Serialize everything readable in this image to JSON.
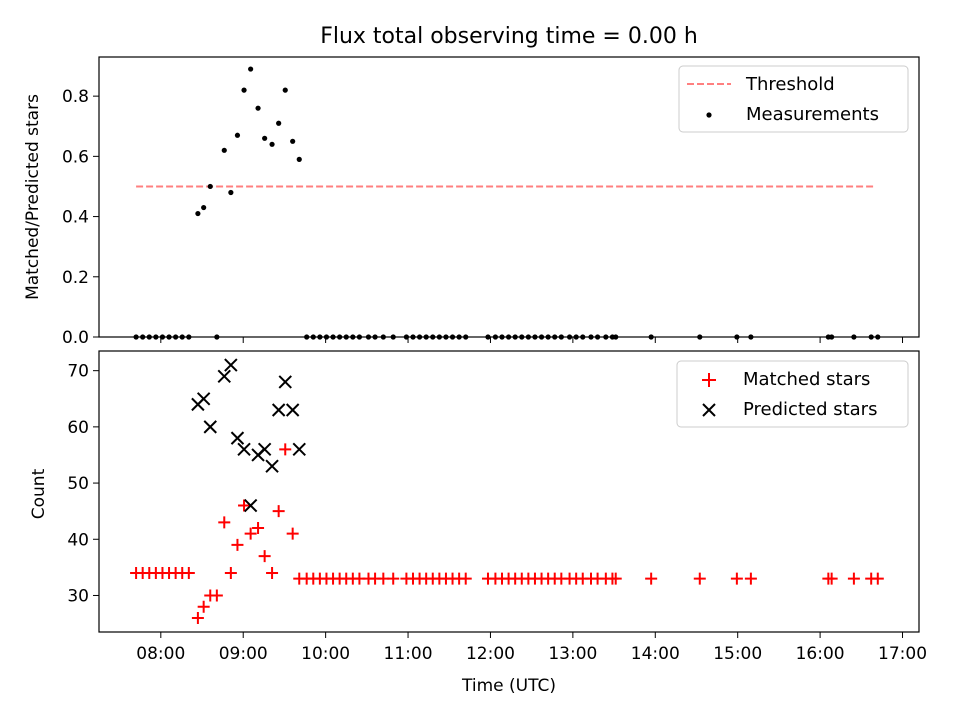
{
  "chart_data": [
    {
      "type": "scatter",
      "title": "Flux total observing time = 0.00 h",
      "xlabel": "",
      "ylabel": "Matched/Predicted stars",
      "xlim": [
        7.25,
        17.2
      ],
      "ylim": [
        0,
        0.93
      ],
      "yticks": [
        0.0,
        0.2,
        0.4,
        0.6,
        0.8
      ],
      "ytick_labels": [
        "0.0",
        "0.2",
        "0.4",
        "0.6",
        "0.8"
      ],
      "legend_position": "top-right",
      "series": [
        {
          "name": "Threshold",
          "kind": "dashed-line",
          "color": "#ff7f7f",
          "x": [
            7.7,
            16.65
          ],
          "y": [
            0.5,
            0.5
          ]
        },
        {
          "name": "Measurements",
          "kind": "dots",
          "color": "#000000",
          "x": [
            7.7,
            7.78,
            7.86,
            7.94,
            8.02,
            8.1,
            8.18,
            8.26,
            8.34,
            8.45,
            8.52,
            8.6,
            8.68,
            8.77,
            8.85,
            8.93,
            9.01,
            9.09,
            9.18,
            9.26,
            9.35,
            9.43,
            9.51,
            9.6,
            9.68,
            9.77,
            9.85,
            9.93,
            10.01,
            10.09,
            10.17,
            10.25,
            10.33,
            10.41,
            10.52,
            10.6,
            10.7,
            10.82,
            10.98,
            11.06,
            11.14,
            11.22,
            11.3,
            11.38,
            11.46,
            11.54,
            11.62,
            11.7,
            11.97,
            12.06,
            12.14,
            12.22,
            12.3,
            12.38,
            12.46,
            12.54,
            12.62,
            12.7,
            12.78,
            12.86,
            12.96,
            13.04,
            13.12,
            13.22,
            13.3,
            13.4,
            13.48,
            13.52,
            13.95,
            14.54,
            14.99,
            15.16,
            16.1,
            16.14,
            16.41,
            16.62,
            16.7
          ],
          "y": [
            0,
            0,
            0,
            0,
            0,
            0,
            0,
            0,
            0,
            0.41,
            0.43,
            0.5,
            0,
            0.62,
            0.48,
            0.67,
            0.82,
            0.89,
            0.76,
            0.66,
            0.64,
            0.71,
            0.82,
            0.65,
            0.59,
            0,
            0,
            0,
            0,
            0,
            0,
            0,
            0,
            0,
            0,
            0,
            0,
            0,
            0,
            0,
            0,
            0,
            0,
            0,
            0,
            0,
            0,
            0,
            0,
            0,
            0,
            0,
            0,
            0,
            0,
            0,
            0,
            0,
            0,
            0,
            0,
            0,
            0,
            0,
            0,
            0,
            0,
            0,
            0,
            0,
            0,
            0,
            0,
            0,
            0,
            0,
            0
          ]
        }
      ]
    },
    {
      "type": "scatter",
      "title": "",
      "xlabel": "Time (UTC)",
      "ylabel": "Count",
      "xlim": [
        7.25,
        17.2
      ],
      "ylim": [
        23.5,
        73.5
      ],
      "yticks": [
        30,
        40,
        50,
        60,
        70
      ],
      "ytick_labels": [
        "30",
        "40",
        "50",
        "60",
        "70"
      ],
      "xticks": [
        8,
        9,
        10,
        11,
        12,
        13,
        14,
        15,
        16,
        17
      ],
      "xtick_labels": [
        "08:00",
        "09:00",
        "10:00",
        "11:00",
        "12:00",
        "13:00",
        "14:00",
        "15:00",
        "16:00",
        "17:00"
      ],
      "legend_position": "top-right",
      "series": [
        {
          "name": "Matched stars",
          "marker": "plus",
          "color": "#ff0000",
          "x": [
            7.7,
            7.78,
            7.86,
            7.94,
            8.02,
            8.1,
            8.18,
            8.26,
            8.34,
            8.45,
            8.52,
            8.6,
            8.68,
            8.77,
            8.85,
            8.93,
            9.01,
            9.09,
            9.18,
            9.26,
            9.35,
            9.43,
            9.51,
            9.6,
            9.68,
            9.77,
            9.85,
            9.93,
            10.01,
            10.09,
            10.17,
            10.25,
            10.33,
            10.41,
            10.52,
            10.6,
            10.7,
            10.82,
            10.98,
            11.06,
            11.14,
            11.22,
            11.3,
            11.38,
            11.46,
            11.54,
            11.62,
            11.7,
            11.97,
            12.06,
            12.14,
            12.22,
            12.3,
            12.38,
            12.46,
            12.54,
            12.62,
            12.7,
            12.78,
            12.86,
            12.96,
            13.04,
            13.12,
            13.22,
            13.3,
            13.4,
            13.48,
            13.52,
            13.95,
            14.54,
            14.99,
            15.16,
            16.1,
            16.14,
            16.41,
            16.62,
            16.7
          ],
          "y": [
            34,
            34,
            34,
            34,
            34,
            34,
            34,
            34,
            34,
            26,
            28,
            30,
            30,
            43,
            34,
            39,
            46,
            41,
            42,
            37,
            34,
            45,
            56,
            41,
            33,
            33,
            33,
            33,
            33,
            33,
            33,
            33,
            33,
            33,
            33,
            33,
            33,
            33,
            33,
            33,
            33,
            33,
            33,
            33,
            33,
            33,
            33,
            33,
            33,
            33,
            33,
            33,
            33,
            33,
            33,
            33,
            33,
            33,
            33,
            33,
            33,
            33,
            33,
            33,
            33,
            33,
            33,
            33,
            33,
            33,
            33,
            33,
            33,
            33,
            33,
            33,
            33
          ]
        },
        {
          "name": "Predicted stars",
          "marker": "x",
          "color": "#000000",
          "x": [
            8.45,
            8.52,
            8.6,
            8.77,
            8.85,
            8.93,
            9.01,
            9.09,
            9.18,
            9.26,
            9.35,
            9.43,
            9.51,
            9.6,
            9.68
          ],
          "y": [
            64,
            65,
            60,
            69,
            71,
            58,
            56,
            46,
            55,
            56,
            53,
            63,
            68,
            63,
            56
          ]
        }
      ]
    }
  ]
}
